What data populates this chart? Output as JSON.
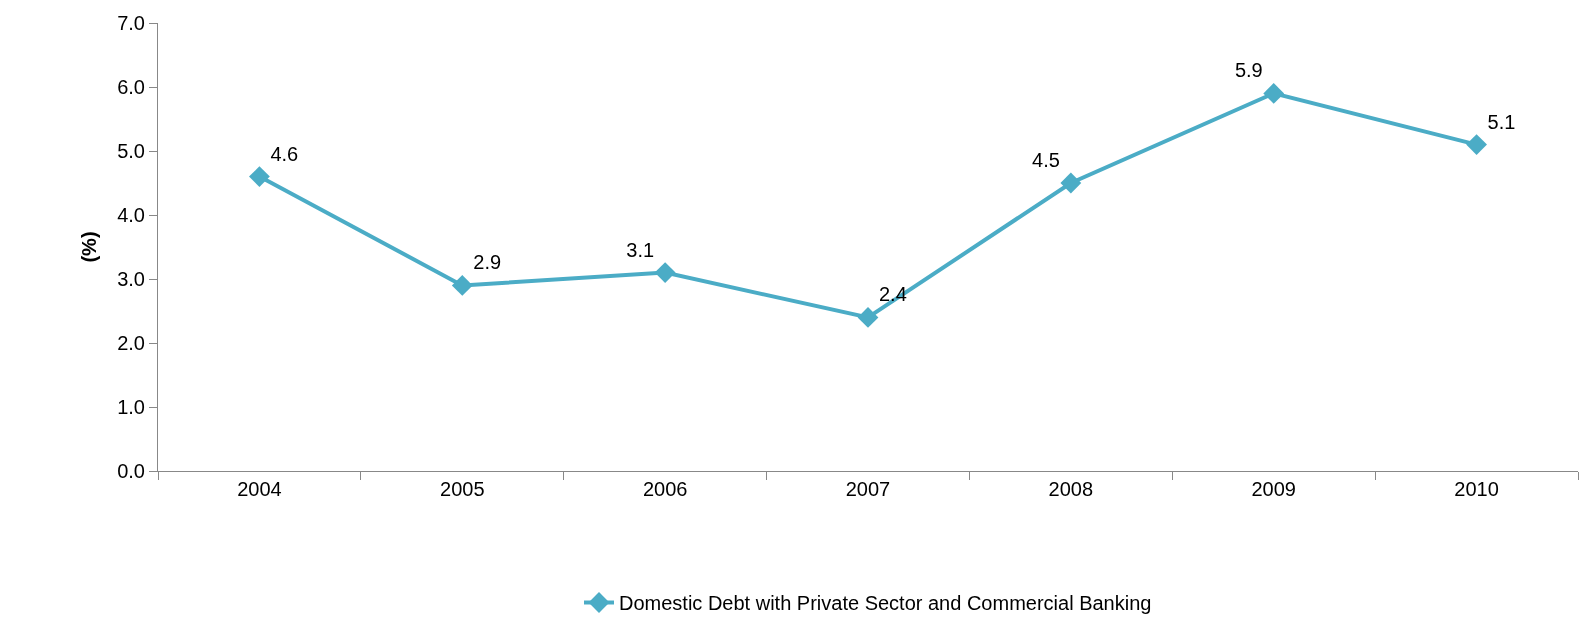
{
  "chart_data": {
    "type": "line",
    "ylabel": "(%)",
    "categories": [
      "2004",
      "2005",
      "2006",
      "2007",
      "2008",
      "2009",
      "2010"
    ],
    "series": [
      {
        "name": "Domestic Debt with Private Sector and Commercial Banking",
        "color": "#4bacc6",
        "values": [
          4.6,
          2.9,
          3.1,
          2.4,
          4.5,
          5.9,
          5.1
        ]
      }
    ],
    "ylim": [
      0,
      7
    ],
    "yticks": [
      {
        "value": 0,
        "label": "0.0"
      },
      {
        "value": 1,
        "label": "1.0"
      },
      {
        "value": 2,
        "label": "2.0"
      },
      {
        "value": 3,
        "label": "3.0"
      },
      {
        "value": 4,
        "label": "4.0"
      },
      {
        "value": 5,
        "label": "5.0"
      },
      {
        "value": 6,
        "label": "6.0"
      },
      {
        "value": 7,
        "label": "7.0"
      }
    ],
    "data_labels": true,
    "marker": "diamond",
    "line_style": "solid",
    "legend": "bottom"
  }
}
